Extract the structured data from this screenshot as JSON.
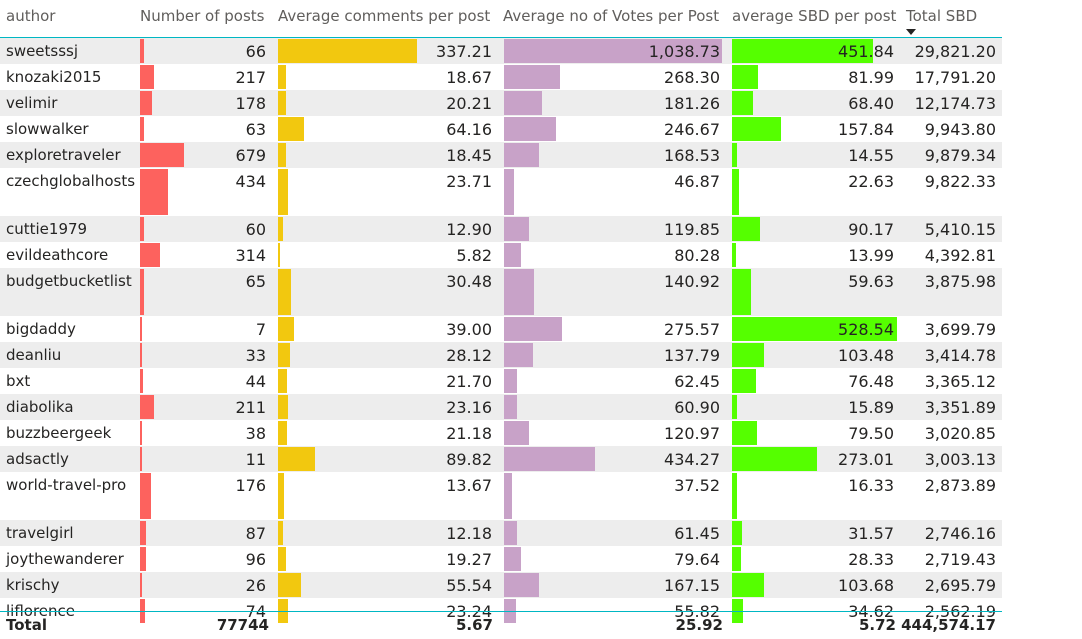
{
  "columns": {
    "author": "author",
    "posts": "Number of posts",
    "comments": "Average comments per post",
    "votes": "Average no of Votes per Post",
    "sbd": "average SBD per post",
    "total": "Total SBD"
  },
  "sort": {
    "column": "total",
    "direction": "descending",
    "icon": "sort-descending-icon"
  },
  "colors": {
    "posts": "#fd625e",
    "comments": "#f2c80f",
    "votes": "#c8a2c8",
    "sbd": "#55ff00",
    "header_line": "#00b7c3",
    "row_alt": "#ededed"
  },
  "bar_max": {
    "posts": 679,
    "comments": 337.21,
    "votes": 1038.73,
    "sbd": 528.54
  },
  "rows": [
    {
      "author": "sweetsssj",
      "posts": 66,
      "posts_text": "66",
      "comments": 337.21,
      "comments_text": "337.21",
      "votes": 1038.73,
      "votes_text": "1,038.73",
      "sbd": 451.84,
      "sbd_text": "451.84",
      "total_text": "29,821.20"
    },
    {
      "author": "knozaki2015",
      "posts": 217,
      "posts_text": "217",
      "comments": 18.67,
      "comments_text": "18.67",
      "votes": 268.3,
      "votes_text": "268.30",
      "sbd": 81.99,
      "sbd_text": "81.99",
      "total_text": "17,791.20"
    },
    {
      "author": "velimir",
      "posts": 178,
      "posts_text": "178",
      "comments": 20.21,
      "comments_text": "20.21",
      "votes": 181.26,
      "votes_text": "181.26",
      "sbd": 68.4,
      "sbd_text": "68.40",
      "total_text": "12,174.73"
    },
    {
      "author": "slowwalker",
      "posts": 63,
      "posts_text": "63",
      "comments": 64.16,
      "comments_text": "64.16",
      "votes": 246.67,
      "votes_text": "246.67",
      "sbd": 157.84,
      "sbd_text": "157.84",
      "total_text": "9,943.80"
    },
    {
      "author": "exploretraveler",
      "posts": 679,
      "posts_text": "679",
      "comments": 18.45,
      "comments_text": "18.45",
      "votes": 168.53,
      "votes_text": "168.53",
      "sbd": 14.55,
      "sbd_text": "14.55",
      "total_text": "9,879.34"
    },
    {
      "author": "czechglobalhosts",
      "posts": 434,
      "posts_text": "434",
      "comments": 23.71,
      "comments_text": "23.71",
      "votes": 46.87,
      "votes_text": "46.87",
      "sbd": 22.63,
      "sbd_text": "22.63",
      "total_text": "9,822.33"
    },
    {
      "author": "cuttie1979",
      "posts": 60,
      "posts_text": "60",
      "comments": 12.9,
      "comments_text": "12.90",
      "votes": 119.85,
      "votes_text": "119.85",
      "sbd": 90.17,
      "sbd_text": "90.17",
      "total_text": "5,410.15"
    },
    {
      "author": "evildeathcore",
      "posts": 314,
      "posts_text": "314",
      "comments": 5.82,
      "comments_text": "5.82",
      "votes": 80.28,
      "votes_text": "80.28",
      "sbd": 13.99,
      "sbd_text": "13.99",
      "total_text": "4,392.81"
    },
    {
      "author": "budgetbucketlist",
      "posts": 65,
      "posts_text": "65",
      "comments": 30.48,
      "comments_text": "30.48",
      "votes": 140.92,
      "votes_text": "140.92",
      "sbd": 59.63,
      "sbd_text": "59.63",
      "total_text": "3,875.98"
    },
    {
      "author": "bigdaddy",
      "posts": 7,
      "posts_text": "7",
      "comments": 39.0,
      "comments_text": "39.00",
      "votes": 275.57,
      "votes_text": "275.57",
      "sbd": 528.54,
      "sbd_text": "528.54",
      "total_text": "3,699.79"
    },
    {
      "author": "deanliu",
      "posts": 33,
      "posts_text": "33",
      "comments": 28.12,
      "comments_text": "28.12",
      "votes": 137.79,
      "votes_text": "137.79",
      "sbd": 103.48,
      "sbd_text": "103.48",
      "total_text": "3,414.78"
    },
    {
      "author": "bxt",
      "posts": 44,
      "posts_text": "44",
      "comments": 21.7,
      "comments_text": "21.70",
      "votes": 62.45,
      "votes_text": "62.45",
      "sbd": 76.48,
      "sbd_text": "76.48",
      "total_text": "3,365.12"
    },
    {
      "author": "diabolika",
      "posts": 211,
      "posts_text": "211",
      "comments": 23.16,
      "comments_text": "23.16",
      "votes": 60.9,
      "votes_text": "60.90",
      "sbd": 15.89,
      "sbd_text": "15.89",
      "total_text": "3,351.89"
    },
    {
      "author": "buzzbeergeek",
      "posts": 38,
      "posts_text": "38",
      "comments": 21.18,
      "comments_text": "21.18",
      "votes": 120.97,
      "votes_text": "120.97",
      "sbd": 79.5,
      "sbd_text": "79.50",
      "total_text": "3,020.85"
    },
    {
      "author": "adsactly",
      "posts": 11,
      "posts_text": "11",
      "comments": 89.82,
      "comments_text": "89.82",
      "votes": 434.27,
      "votes_text": "434.27",
      "sbd": 273.01,
      "sbd_text": "273.01",
      "total_text": "3,003.13"
    },
    {
      "author": "world-travel-pro",
      "posts": 176,
      "posts_text": "176",
      "comments": 13.67,
      "comments_text": "13.67",
      "votes": 37.52,
      "votes_text": "37.52",
      "sbd": 16.33,
      "sbd_text": "16.33",
      "total_text": "2,873.89"
    },
    {
      "author": "travelgirl",
      "posts": 87,
      "posts_text": "87",
      "comments": 12.18,
      "comments_text": "12.18",
      "votes": 61.45,
      "votes_text": "61.45",
      "sbd": 31.57,
      "sbd_text": "31.57",
      "total_text": "2,746.16"
    },
    {
      "author": "joythewanderer",
      "posts": 96,
      "posts_text": "96",
      "comments": 19.27,
      "comments_text": "19.27",
      "votes": 79.64,
      "votes_text": "79.64",
      "sbd": 28.33,
      "sbd_text": "28.33",
      "total_text": "2,719.43"
    },
    {
      "author": "krischy",
      "posts": 26,
      "posts_text": "26",
      "comments": 55.54,
      "comments_text": "55.54",
      "votes": 167.15,
      "votes_text": "167.15",
      "sbd": 103.68,
      "sbd_text": "103.68",
      "total_text": "2,695.79"
    },
    {
      "author": "liflorence",
      "posts": 74,
      "posts_text": "74",
      "comments": 23.24,
      "comments_text": "23.24",
      "votes": 55.82,
      "votes_text": "55.82",
      "sbd": 34.62,
      "sbd_text": "34.62",
      "total_text": "2,562.19"
    }
  ],
  "totals": {
    "label": "Total",
    "posts": "77744",
    "comments": "5.67",
    "votes": "25.92",
    "sbd": "5.72",
    "total": "444,574.17"
  }
}
